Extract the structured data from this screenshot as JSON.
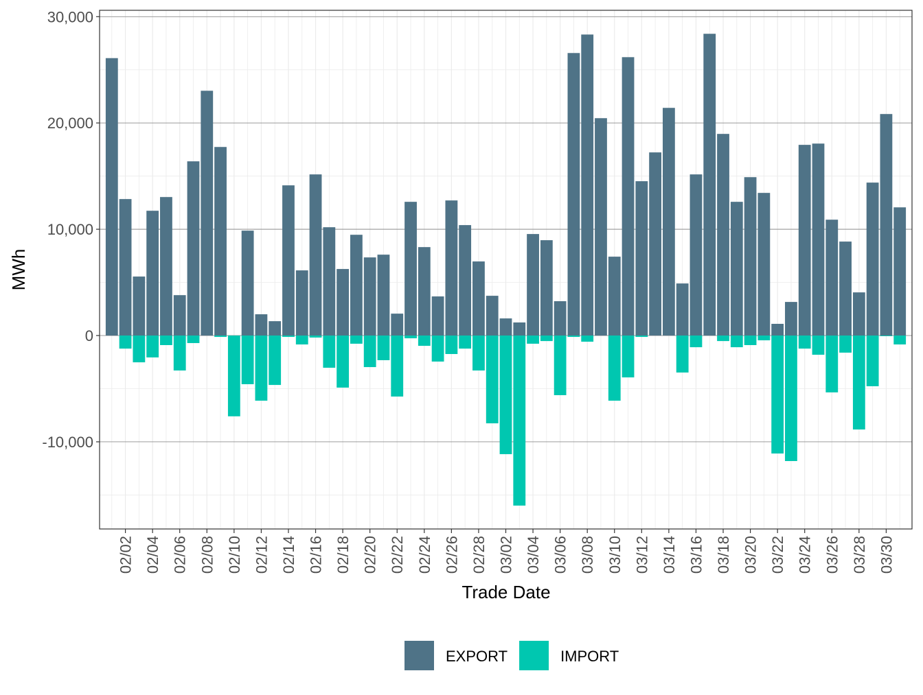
{
  "chart_data": {
    "type": "bar",
    "stacked": true,
    "x_label": "Trade Date",
    "y_label": "MWh",
    "categories": [
      null,
      "02/02",
      null,
      "02/04",
      null,
      "02/06",
      null,
      "02/08",
      null,
      "02/10",
      null,
      "02/12",
      null,
      "02/14",
      null,
      "02/16",
      null,
      "02/18",
      null,
      "02/20",
      null,
      "02/22",
      null,
      "02/24",
      null,
      "02/26",
      null,
      "02/28",
      null,
      "03/02",
      null,
      "03/04",
      null,
      "03/06",
      null,
      "03/08",
      null,
      "03/10",
      null,
      "03/12",
      null,
      "03/14",
      null,
      "03/16",
      null,
      "03/18",
      null,
      "03/20",
      null,
      "03/22",
      null,
      "03/24",
      null,
      "03/26",
      null,
      "03/28",
      null,
      "03/30",
      null
    ],
    "series": [
      {
        "name": "EXPORT",
        "color": "#4f7387",
        "values": [
          26100,
          12840,
          5550,
          11740,
          13030,
          3800,
          16390,
          23030,
          17740,
          0,
          9870,
          2000,
          1350,
          14130,
          6130,
          15160,
          10190,
          6260,
          9480,
          7350,
          7610,
          2060,
          12580,
          8320,
          3680,
          12710,
          10390,
          6970,
          3740,
          1610,
          1230,
          9550,
          8970,
          3230,
          26580,
          28320,
          20450,
          7420,
          26190,
          14520,
          17230,
          21420,
          4900,
          15160,
          28390,
          18970,
          12580,
          14900,
          13420,
          1100,
          3160,
          17940,
          18060,
          10900,
          8840,
          4060,
          14390,
          20840,
          12060
        ]
      },
      {
        "name": "IMPORT",
        "color": "#00c7b0",
        "values": [
          0,
          -1230,
          -2520,
          -2060,
          -900,
          -3290,
          -710,
          0,
          -130,
          -7600,
          -4580,
          -6130,
          -4650,
          -130,
          -840,
          -190,
          -3030,
          -4900,
          -770,
          -2970,
          -2320,
          -5740,
          -260,
          -970,
          -2450,
          -1740,
          -1230,
          -3290,
          -8260,
          -11160,
          -16000,
          -770,
          -520,
          -5610,
          -130,
          -580,
          0,
          -6130,
          -3940,
          -130,
          0,
          0,
          -3480,
          -1100,
          0,
          -520,
          -1100,
          -900,
          -450,
          -11100,
          -11810,
          -1230,
          -1810,
          -5350,
          -1610,
          -8840,
          -4770,
          -60,
          -840
        ]
      }
    ],
    "ylim": [
      -18200,
      30600
    ],
    "yticks": [
      {
        "value": -10000,
        "label": "-10,000"
      },
      0,
      {
        "value": 10000,
        "label": "10,000"
      },
      {
        "value": 20000,
        "label": "20,000"
      },
      {
        "value": 30000,
        "label": "30,000"
      }
    ],
    "yminor": [
      -15000,
      -5000,
      5000,
      15000,
      25000
    ],
    "grid": true,
    "legend": "bottom"
  }
}
